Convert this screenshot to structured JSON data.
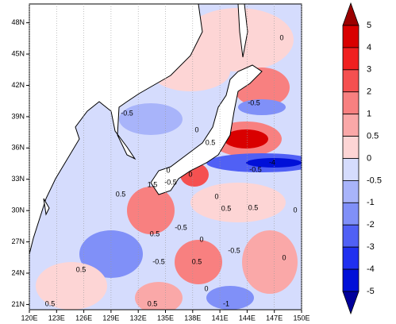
{
  "map": {
    "xticks": [
      {
        "value": 120,
        "label": "120E"
      },
      {
        "value": 123,
        "label": "123E"
      },
      {
        "value": 126,
        "label": "126E"
      },
      {
        "value": 129,
        "label": "129E"
      },
      {
        "value": 132,
        "label": "132E"
      },
      {
        "value": 135,
        "label": "135E"
      },
      {
        "value": 138,
        "label": "138E"
      },
      {
        "value": 141,
        "label": "141E"
      },
      {
        "value": 144,
        "label": "144E"
      },
      {
        "value": 147,
        "label": "147E"
      },
      {
        "value": 150,
        "label": "150E"
      }
    ],
    "yticks": [
      {
        "value": 21,
        "label": "21N"
      },
      {
        "value": 24,
        "label": "24N"
      },
      {
        "value": 27,
        "label": "27N"
      },
      {
        "value": 30,
        "label": "30N"
      },
      {
        "value": 33,
        "label": "33N"
      },
      {
        "value": 36,
        "label": "36N"
      },
      {
        "value": 39,
        "label": "39N"
      },
      {
        "value": 42,
        "label": "42N"
      },
      {
        "value": 45,
        "label": "45N"
      },
      {
        "value": 48,
        "label": "48N"
      }
    ],
    "xlim": [
      120,
      150
    ],
    "ylim": [
      20.5,
      49.8
    ],
    "grid": true,
    "contour_labels": [
      -0.5,
      0,
      -0.5,
      0,
      0.5,
      -0.5,
      -4,
      0,
      -0.5,
      1.5,
      0.5,
      0.5,
      0,
      -0.5,
      0.5,
      -0.5,
      0,
      0.5,
      -0.5,
      0.5,
      0,
      -1,
      0.5,
      0.5,
      0,
      0,
      0.5,
      0
    ]
  },
  "colorbar": {
    "levels": [
      5,
      4,
      3,
      2,
      1,
      0.5,
      0,
      -0.5,
      -1,
      -2,
      -3,
      -4,
      -5
    ],
    "colors": [
      "#9b0000",
      "#d90000",
      "#f02020",
      "#f55050",
      "#f88080",
      "#faa8a8",
      "#fdd5d5",
      "#d5dcfd",
      "#a8b4fa",
      "#8090f8",
      "#5060f5",
      "#2030f0",
      "#0010d8",
      "#00009b"
    ]
  }
}
